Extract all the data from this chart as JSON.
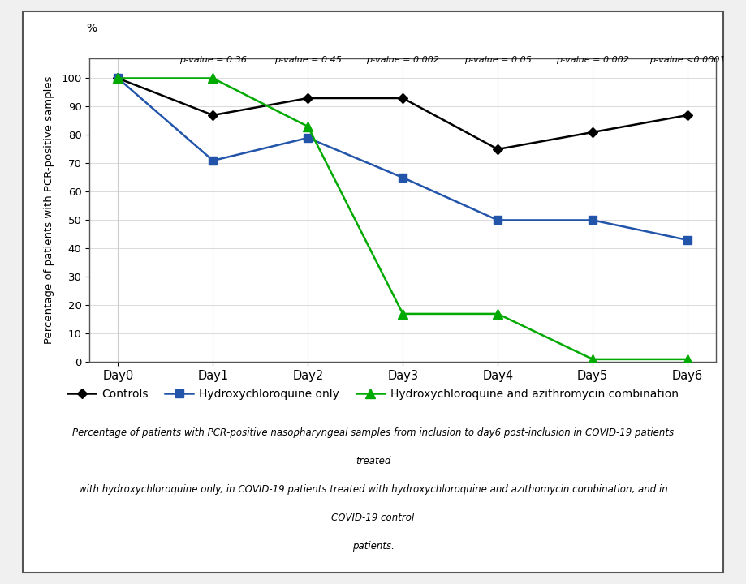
{
  "x_labels": [
    "Day0",
    "Day1",
    "Day2",
    "Day3",
    "Day4",
    "Day5",
    "Day6"
  ],
  "x_values": [
    0,
    1,
    2,
    3,
    4,
    5,
    6
  ],
  "controls": [
    100,
    87,
    93,
    93,
    75,
    81,
    87
  ],
  "hydroxychloroquine": [
    100,
    71,
    79,
    65,
    50,
    50,
    43
  ],
  "combination": [
    100,
    100,
    83,
    17,
    17,
    1,
    1
  ],
  "p_values": [
    "p-value = 0.36",
    "p-value = 0.45",
    "p-value = 0.002",
    "p-value = 0.05",
    "p-value = 0.002",
    "p-value <0.0001"
  ],
  "p_value_x": [
    1,
    2,
    3,
    4,
    5,
    6
  ],
  "controls_color": "#000000",
  "hydroxy_color": "#2255aa",
  "combo_color": "#00aa00",
  "ylabel": "Percentage of patients with PCR-positive samples",
  "ylim": [
    0,
    110
  ],
  "yticks": [
    0,
    10,
    20,
    30,
    40,
    50,
    60,
    70,
    80,
    90,
    100
  ],
  "ylabel_percent": "%",
  "legend_labels": [
    "Controls",
    "Hydroxychloroquine only",
    "Hydroxychloroquine and azithromycin combination"
  ],
  "caption_line1": "Percentage of patients with PCR-positive nasopharyngeal samples from inclusion to day6 post-inclusion in COVID-19 patients",
  "caption_line2": "treated",
  "caption_line3": "with hydroxychloroquine only, in COVID-19 patients treated with hydroxychloroquine and azithomycin combination, and in",
  "caption_line4": "COVID-19 control",
  "caption_line5": "patients.",
  "outer_bg": "#f0f0f0",
  "inner_bg": "#ffffff",
  "border_color": "#555555",
  "grid_color": "#cccccc",
  "figsize": [
    9.19,
    7.2
  ],
  "dpi": 100
}
